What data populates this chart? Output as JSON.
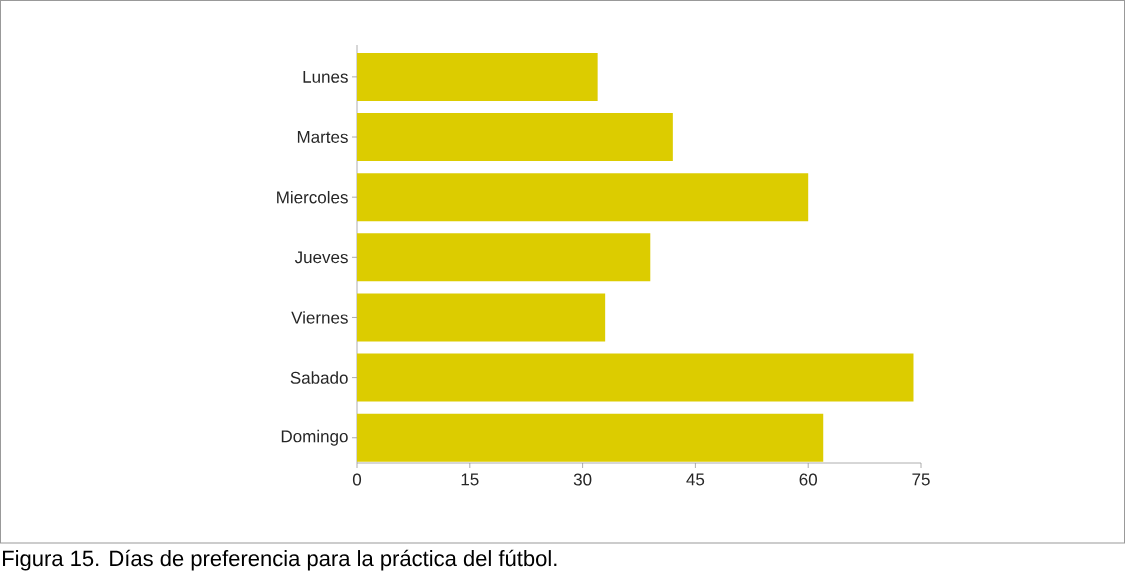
{
  "chart_data": {
    "type": "bar",
    "orientation": "horizontal",
    "categories": [
      "Lunes",
      "Martes",
      "Miercoles",
      "Jueves",
      "Viernes",
      "Sabado",
      "Domingo"
    ],
    "values": [
      32,
      42,
      60,
      39,
      33,
      74,
      62
    ],
    "color": "#dccc00",
    "xlim": [
      0,
      75
    ],
    "xticks": [
      0,
      15,
      30,
      45,
      60,
      75
    ],
    "annotations": [
      "Figura 15. Días de preferencia para la práctica del fútbol."
    ]
  }
}
